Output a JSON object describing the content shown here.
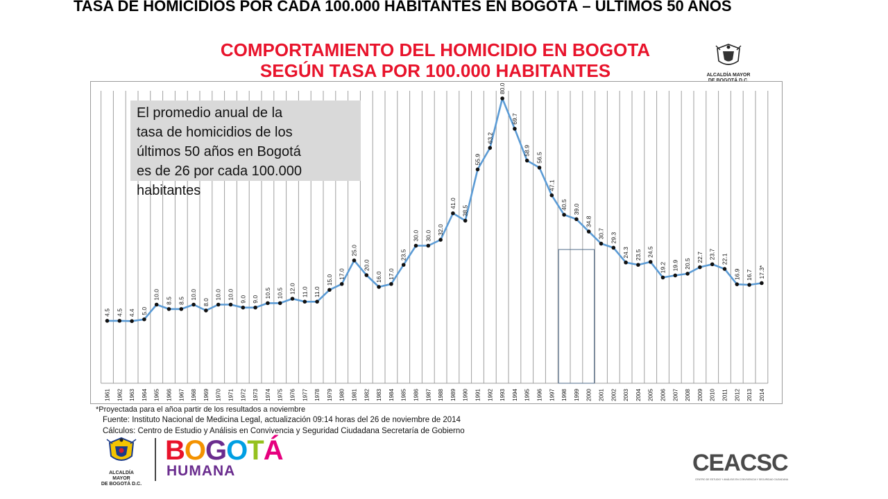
{
  "slide_title": "TASA DE HOMICIDIOS POR CADA 100.000 HABITANTES EN BOGOTÁ – ÚLTIMOS 50 AÑOS",
  "header": {
    "title_line1": "COMPORTAMIENTO DEL HOMICIDIO EN BOGOTA",
    "title_line2": "SEGÚN TASA POR 100.000 HABITANTES",
    "logo_caption_line1": "ALCALDÍA MAYOR",
    "logo_caption_line2": "DE BOGOTÁ D.C."
  },
  "note": "El promedio anual de la\ntasa de homicidios de los\núltimos 50 años en Bogotá\nes de 26 por cada 100.000\nhabitantes",
  "footnote": "*Proyectada  para el añoa partir de los resultados a noviembre",
  "source": "Fuente: Instituto Nacional de Medicina Legal, actualización  09:14  horas del  26 de noviembre de 2014",
  "calc": "Cálculos: Centro de Estudio y Análisis en Convivencia y Seguridad Ciudadana Secretaría de Gobierno",
  "footer": {
    "bottom_logo_line1": "ALCALDÍA MAYOR",
    "bottom_logo_line2": "DE BOGOTÁ D.C.",
    "brand_word": "BOGOTÁ",
    "brand_sub": "HUMANA",
    "ceacsc": "CEACSC",
    "ceacsc_sub": "CENTRO DE ESTUDIO Y ANÁLISIS EN CONVIVENCIA Y SEGURIDAD CIUDADANA"
  },
  "colors": {
    "title_red": "#e8132b",
    "line_blue": "#5b9bd5",
    "marker": "#111111",
    "note_bg": "#d9d9d9",
    "highlight_box": "#4f6b8a"
  },
  "chart_data": {
    "type": "line",
    "title": "",
    "xlabel": "",
    "ylabel": "",
    "ylim": [
      0,
      90
    ],
    "grid": "vertical",
    "x": [
      "1961",
      "1962",
      "1963",
      "1964",
      "1965",
      "1966",
      "1967",
      "1968",
      "1969",
      "1970",
      "1971",
      "1972",
      "1973",
      "1974",
      "1975",
      "1976",
      "1977",
      "1978",
      "1979",
      "1980",
      "1981",
      "1982",
      "1983",
      "1984",
      "1985",
      "1986",
      "1987",
      "1988",
      "1989",
      "1990",
      "1991",
      "1992",
      "1993",
      "1994",
      "1995",
      "1996",
      "1997",
      "1998",
      "1999",
      "2000",
      "2001",
      "2002",
      "2003",
      "2004",
      "2005",
      "2006",
      "2007",
      "2008",
      "2009",
      "2010",
      "2011",
      "2012",
      "2013",
      "2014"
    ],
    "values": [
      4.5,
      4.5,
      4.4,
      5.0,
      10.0,
      8.5,
      8.5,
      10.0,
      8.0,
      10.0,
      10.0,
      9.0,
      9.0,
      10.5,
      10.5,
      12.0,
      11.0,
      11.0,
      15.0,
      17.0,
      25.0,
      20.0,
      16.0,
      17.0,
      23.5,
      30.0,
      30.0,
      32.0,
      41.0,
      38.5,
      55.9,
      63.2,
      80.0,
      69.7,
      58.9,
      56.5,
      47.1,
      40.5,
      39.0,
      34.8,
      30.7,
      29.3,
      24.3,
      23.5,
      24.5,
      19.2,
      19.9,
      20.5,
      22.7,
      23.7,
      22.1,
      16.9,
      16.7,
      17.3
    ],
    "labels": [
      "4.5",
      "4.5",
      "4.4",
      "5.0",
      "10.0",
      "8.5",
      "8.5",
      "10.0",
      "8.0",
      "10.0",
      "10.0",
      "9.0",
      "9.0",
      "10.5",
      "10.5",
      "12.0",
      "11.0",
      "11.0",
      "15.0",
      "17.0",
      "25.0",
      "20.0",
      "16.0",
      "17.0",
      "23.5",
      "30.0",
      "30.0",
      "32.0",
      "41.0",
      "38.5",
      "55.9",
      "63.2",
      "80.0",
      "69.7",
      "58.9",
      "56.5",
      "47.1",
      "40.5",
      "39.0",
      "34.8",
      "30.7",
      "29.3",
      "24.3",
      "23.5",
      "24.5",
      "19.2",
      "19.9",
      "20.5",
      "22.7",
      "23.7",
      "22.1",
      "16.9",
      "16.7",
      "17.3*"
    ],
    "highlight_range": [
      "1998",
      "2000"
    ]
  }
}
